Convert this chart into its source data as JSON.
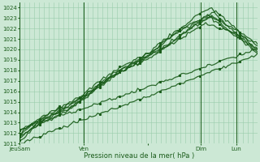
{
  "xlabel": "Pression niveau de la mer( hPa )",
  "ylim": [
    1011,
    1024.5
  ],
  "yticks": [
    1011,
    1012,
    1013,
    1014,
    1015,
    1016,
    1017,
    1018,
    1019,
    1020,
    1021,
    1022,
    1023,
    1024
  ],
  "xtick_labels": [
    "JeuSam",
    "Ven",
    "",
    "Dim",
    "Lun"
  ],
  "xtick_positions": [
    0.0,
    0.27,
    0.54,
    0.76,
    0.91
  ],
  "vline_positions": [
    0.0,
    0.27,
    0.76,
    0.91
  ],
  "background_color": "#cce8d5",
  "grid_color": "#99ccaa",
  "line_color": "#1a5c1a",
  "xlim": [
    0.0,
    1.0
  ]
}
